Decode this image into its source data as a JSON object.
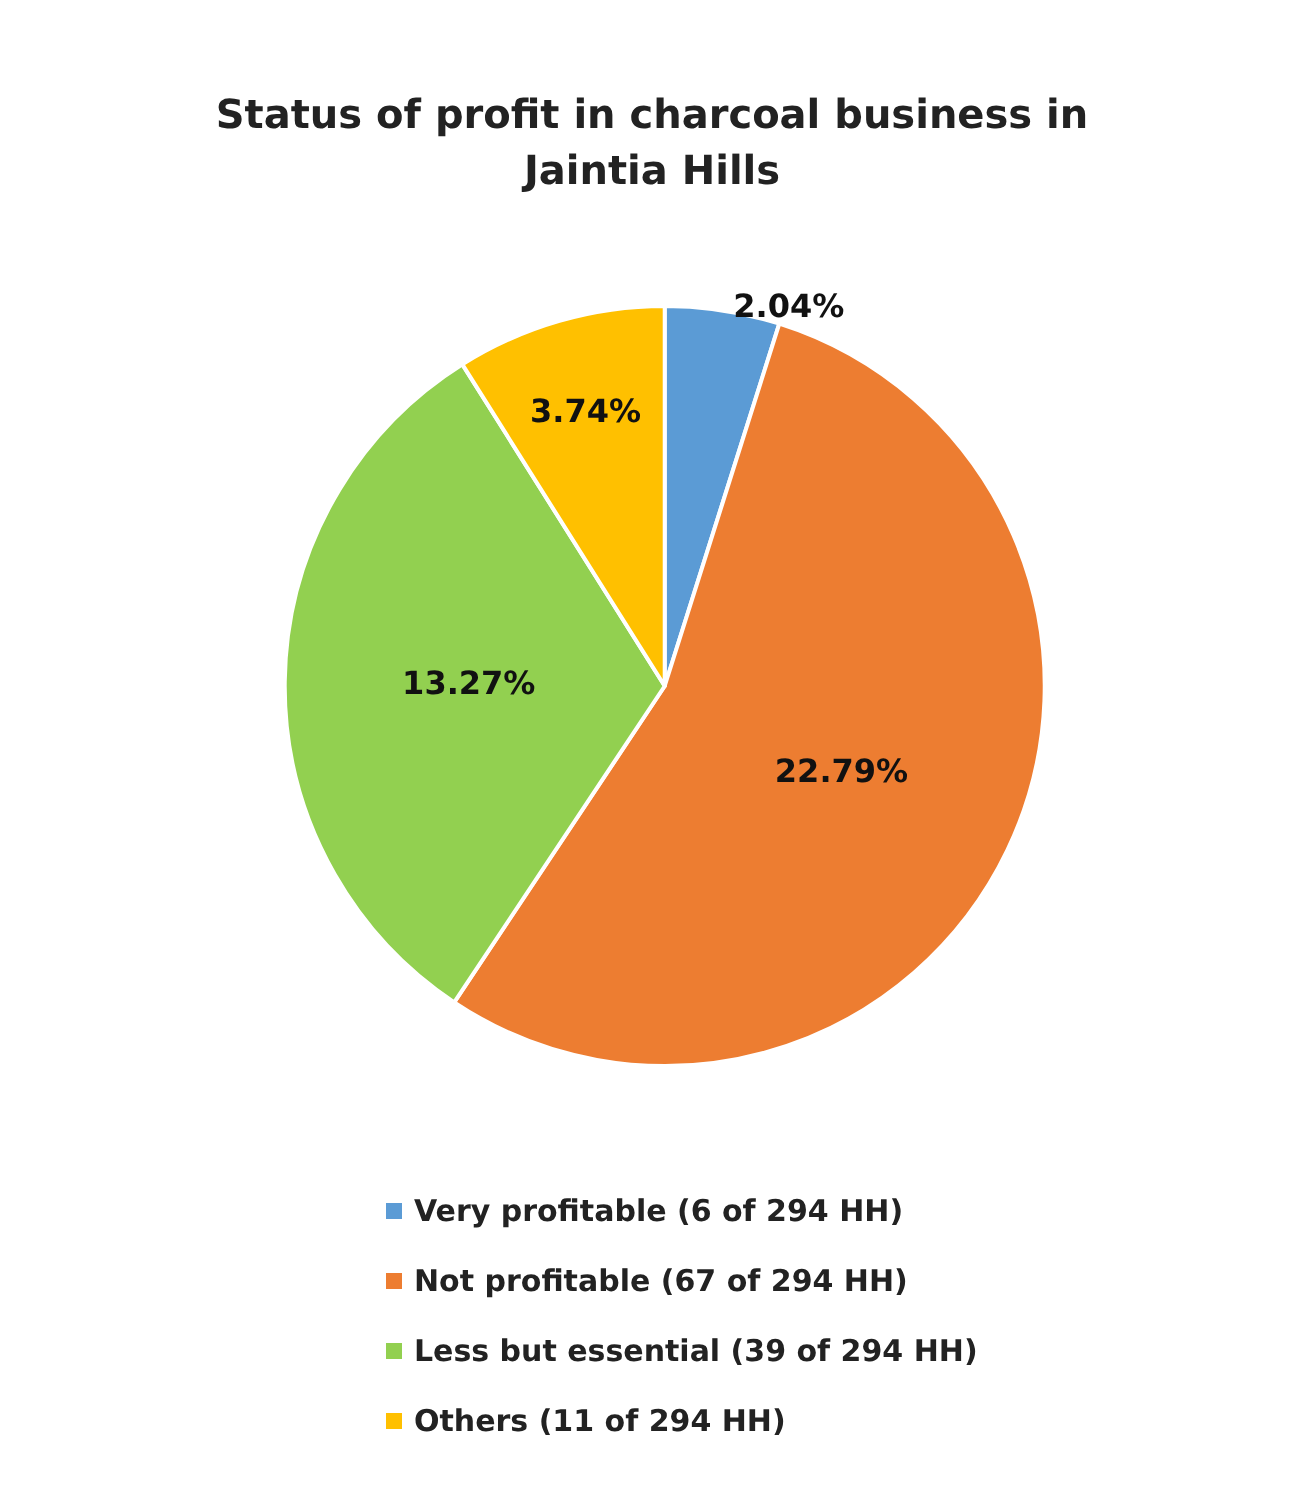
{
  "chart_data": {
    "type": "pie",
    "title": "Status of profit in charcoal business in\nJaintia Hills",
    "categories": [
      "Very profitable (6 of 294 HH)",
      "Not profitable (67 of 294 HH)",
      "Less but essential (39 of 294 HH)",
      "Others (11 of 294 HH)"
    ],
    "values": [
      2.04,
      22.79,
      13.27,
      3.74
    ],
    "value_labels": [
      "2.04%",
      "22.79%",
      "13.27%",
      "3.74%"
    ],
    "colors": [
      "#5b9bd5",
      "#ed7d31",
      "#92d050",
      "#ffc000"
    ],
    "legend": "bottom"
  }
}
